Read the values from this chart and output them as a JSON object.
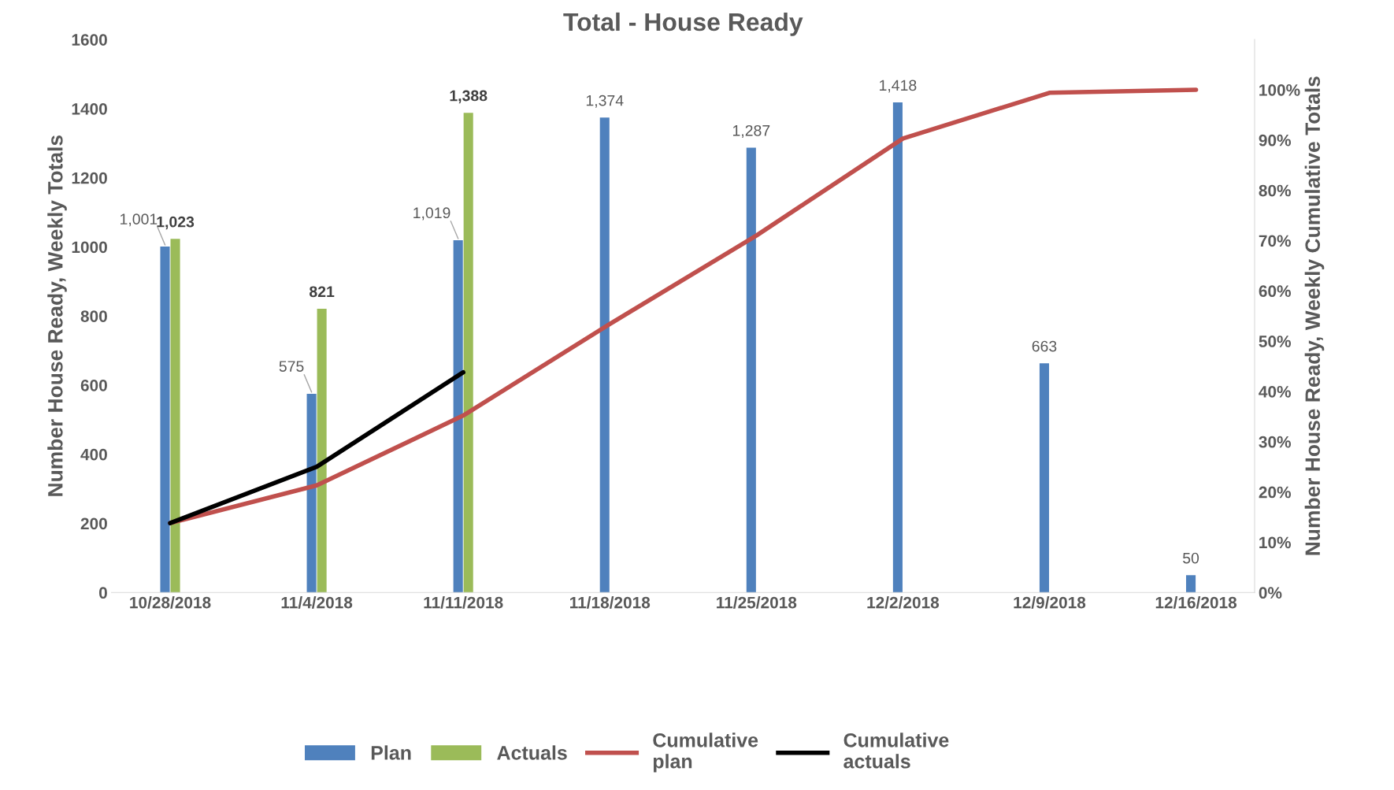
{
  "chart_data": {
    "type": "bar",
    "title": "Total - House Ready",
    "ylabel": "Number House Ready, Weekly Totals",
    "y2label": "Number House Ready, Weekly Cumulative Totals",
    "categories": [
      "10/28/2018",
      "11/4/2018",
      "11/11/2018",
      "11/18/2018",
      "11/25/2018",
      "12/2/2018",
      "12/9/2018",
      "12/16/2018"
    ],
    "series": [
      {
        "name": "Plan",
        "color": "#4f81bd",
        "values": [
          1001,
          575,
          1019,
          1374,
          1287,
          1418,
          663,
          50
        ],
        "value_labels": [
          "1,001",
          "575",
          "1,019",
          "1,374",
          "1,287",
          "1,418",
          "663",
          "50"
        ]
      },
      {
        "name": "Actuals",
        "color": "#9bbb59",
        "values": [
          1023,
          821,
          1388,
          null,
          null,
          null,
          null,
          null
        ],
        "value_labels": [
          "1,023",
          "821",
          "1,388",
          null,
          null,
          null,
          null,
          null
        ]
      },
      {
        "name": "Cumulative plan",
        "type": "line",
        "axis": "y2",
        "color": "#c0504d",
        "values": [
          13.8,
          21.3,
          35.2,
          53.4,
          71,
          90.3,
          99.4,
          100
        ]
      },
      {
        "name": "Cumulative actuals",
        "type": "line",
        "axis": "y2",
        "color": "#000000",
        "values": [
          13.8,
          25,
          43.8,
          null,
          null,
          null,
          null,
          null
        ]
      }
    ],
    "ylim": [
      0,
      1600
    ],
    "yticks": [
      0,
      200,
      400,
      600,
      800,
      1000,
      1200,
      1400,
      1600
    ],
    "y2lim": [
      0,
      110
    ],
    "y2ticks": [
      {
        "value": 0,
        "label": "0%"
      },
      {
        "value": 10,
        "label": "10%"
      },
      {
        "value": 20,
        "label": "20%"
      },
      {
        "value": 30,
        "label": "30%"
      },
      {
        "value": 40,
        "label": "40%"
      },
      {
        "value": 50,
        "label": "50%"
      },
      {
        "value": 60,
        "label": "60%"
      },
      {
        "value": 70,
        "label": "70%"
      },
      {
        "value": 80,
        "label": "80%"
      },
      {
        "value": 90,
        "label": "90%"
      },
      {
        "value": 100,
        "label": "100%"
      }
    ],
    "grid": false,
    "legend": "bottom",
    "line_style": "solid",
    "marker": "none"
  }
}
